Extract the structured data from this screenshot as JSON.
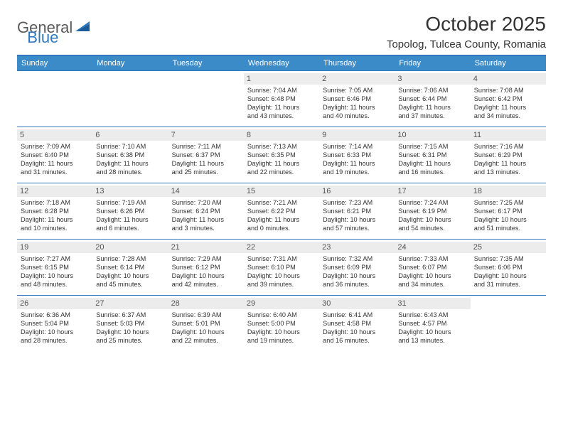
{
  "logo": {
    "word1": "General",
    "word2": "Blue"
  },
  "title": "October 2025",
  "location": "Topolog, Tulcea County, Romania",
  "colors": {
    "header_bg": "#3b8bc9",
    "border": "#2f78bf",
    "daynum_bg": "#ececec",
    "text": "#333333",
    "logo_gray": "#5a5a5a",
    "logo_blue": "#2f78bf"
  },
  "dow": [
    "Sunday",
    "Monday",
    "Tuesday",
    "Wednesday",
    "Thursday",
    "Friday",
    "Saturday"
  ],
  "weeks": [
    [
      {
        "n": "",
        "sunrise": "",
        "sunset": "",
        "day1": "",
        "day2": ""
      },
      {
        "n": "",
        "sunrise": "",
        "sunset": "",
        "day1": "",
        "day2": ""
      },
      {
        "n": "",
        "sunrise": "",
        "sunset": "",
        "day1": "",
        "day2": ""
      },
      {
        "n": "1",
        "sunrise": "Sunrise: 7:04 AM",
        "sunset": "Sunset: 6:48 PM",
        "day1": "Daylight: 11 hours",
        "day2": "and 43 minutes."
      },
      {
        "n": "2",
        "sunrise": "Sunrise: 7:05 AM",
        "sunset": "Sunset: 6:46 PM",
        "day1": "Daylight: 11 hours",
        "day2": "and 40 minutes."
      },
      {
        "n": "3",
        "sunrise": "Sunrise: 7:06 AM",
        "sunset": "Sunset: 6:44 PM",
        "day1": "Daylight: 11 hours",
        "day2": "and 37 minutes."
      },
      {
        "n": "4",
        "sunrise": "Sunrise: 7:08 AM",
        "sunset": "Sunset: 6:42 PM",
        "day1": "Daylight: 11 hours",
        "day2": "and 34 minutes."
      }
    ],
    [
      {
        "n": "5",
        "sunrise": "Sunrise: 7:09 AM",
        "sunset": "Sunset: 6:40 PM",
        "day1": "Daylight: 11 hours",
        "day2": "and 31 minutes."
      },
      {
        "n": "6",
        "sunrise": "Sunrise: 7:10 AM",
        "sunset": "Sunset: 6:38 PM",
        "day1": "Daylight: 11 hours",
        "day2": "and 28 minutes."
      },
      {
        "n": "7",
        "sunrise": "Sunrise: 7:11 AM",
        "sunset": "Sunset: 6:37 PM",
        "day1": "Daylight: 11 hours",
        "day2": "and 25 minutes."
      },
      {
        "n": "8",
        "sunrise": "Sunrise: 7:13 AM",
        "sunset": "Sunset: 6:35 PM",
        "day1": "Daylight: 11 hours",
        "day2": "and 22 minutes."
      },
      {
        "n": "9",
        "sunrise": "Sunrise: 7:14 AM",
        "sunset": "Sunset: 6:33 PM",
        "day1": "Daylight: 11 hours",
        "day2": "and 19 minutes."
      },
      {
        "n": "10",
        "sunrise": "Sunrise: 7:15 AM",
        "sunset": "Sunset: 6:31 PM",
        "day1": "Daylight: 11 hours",
        "day2": "and 16 minutes."
      },
      {
        "n": "11",
        "sunrise": "Sunrise: 7:16 AM",
        "sunset": "Sunset: 6:29 PM",
        "day1": "Daylight: 11 hours",
        "day2": "and 13 minutes."
      }
    ],
    [
      {
        "n": "12",
        "sunrise": "Sunrise: 7:18 AM",
        "sunset": "Sunset: 6:28 PM",
        "day1": "Daylight: 11 hours",
        "day2": "and 10 minutes."
      },
      {
        "n": "13",
        "sunrise": "Sunrise: 7:19 AM",
        "sunset": "Sunset: 6:26 PM",
        "day1": "Daylight: 11 hours",
        "day2": "and 6 minutes."
      },
      {
        "n": "14",
        "sunrise": "Sunrise: 7:20 AM",
        "sunset": "Sunset: 6:24 PM",
        "day1": "Daylight: 11 hours",
        "day2": "and 3 minutes."
      },
      {
        "n": "15",
        "sunrise": "Sunrise: 7:21 AM",
        "sunset": "Sunset: 6:22 PM",
        "day1": "Daylight: 11 hours",
        "day2": "and 0 minutes."
      },
      {
        "n": "16",
        "sunrise": "Sunrise: 7:23 AM",
        "sunset": "Sunset: 6:21 PM",
        "day1": "Daylight: 10 hours",
        "day2": "and 57 minutes."
      },
      {
        "n": "17",
        "sunrise": "Sunrise: 7:24 AM",
        "sunset": "Sunset: 6:19 PM",
        "day1": "Daylight: 10 hours",
        "day2": "and 54 minutes."
      },
      {
        "n": "18",
        "sunrise": "Sunrise: 7:25 AM",
        "sunset": "Sunset: 6:17 PM",
        "day1": "Daylight: 10 hours",
        "day2": "and 51 minutes."
      }
    ],
    [
      {
        "n": "19",
        "sunrise": "Sunrise: 7:27 AM",
        "sunset": "Sunset: 6:15 PM",
        "day1": "Daylight: 10 hours",
        "day2": "and 48 minutes."
      },
      {
        "n": "20",
        "sunrise": "Sunrise: 7:28 AM",
        "sunset": "Sunset: 6:14 PM",
        "day1": "Daylight: 10 hours",
        "day2": "and 45 minutes."
      },
      {
        "n": "21",
        "sunrise": "Sunrise: 7:29 AM",
        "sunset": "Sunset: 6:12 PM",
        "day1": "Daylight: 10 hours",
        "day2": "and 42 minutes."
      },
      {
        "n": "22",
        "sunrise": "Sunrise: 7:31 AM",
        "sunset": "Sunset: 6:10 PM",
        "day1": "Daylight: 10 hours",
        "day2": "and 39 minutes."
      },
      {
        "n": "23",
        "sunrise": "Sunrise: 7:32 AM",
        "sunset": "Sunset: 6:09 PM",
        "day1": "Daylight: 10 hours",
        "day2": "and 36 minutes."
      },
      {
        "n": "24",
        "sunrise": "Sunrise: 7:33 AM",
        "sunset": "Sunset: 6:07 PM",
        "day1": "Daylight: 10 hours",
        "day2": "and 34 minutes."
      },
      {
        "n": "25",
        "sunrise": "Sunrise: 7:35 AM",
        "sunset": "Sunset: 6:06 PM",
        "day1": "Daylight: 10 hours",
        "day2": "and 31 minutes."
      }
    ],
    [
      {
        "n": "26",
        "sunrise": "Sunrise: 6:36 AM",
        "sunset": "Sunset: 5:04 PM",
        "day1": "Daylight: 10 hours",
        "day2": "and 28 minutes."
      },
      {
        "n": "27",
        "sunrise": "Sunrise: 6:37 AM",
        "sunset": "Sunset: 5:03 PM",
        "day1": "Daylight: 10 hours",
        "day2": "and 25 minutes."
      },
      {
        "n": "28",
        "sunrise": "Sunrise: 6:39 AM",
        "sunset": "Sunset: 5:01 PM",
        "day1": "Daylight: 10 hours",
        "day2": "and 22 minutes."
      },
      {
        "n": "29",
        "sunrise": "Sunrise: 6:40 AM",
        "sunset": "Sunset: 5:00 PM",
        "day1": "Daylight: 10 hours",
        "day2": "and 19 minutes."
      },
      {
        "n": "30",
        "sunrise": "Sunrise: 6:41 AM",
        "sunset": "Sunset: 4:58 PM",
        "day1": "Daylight: 10 hours",
        "day2": "and 16 minutes."
      },
      {
        "n": "31",
        "sunrise": "Sunrise: 6:43 AM",
        "sunset": "Sunset: 4:57 PM",
        "day1": "Daylight: 10 hours",
        "day2": "and 13 minutes."
      },
      {
        "n": "",
        "sunrise": "",
        "sunset": "",
        "day1": "",
        "day2": ""
      }
    ]
  ]
}
